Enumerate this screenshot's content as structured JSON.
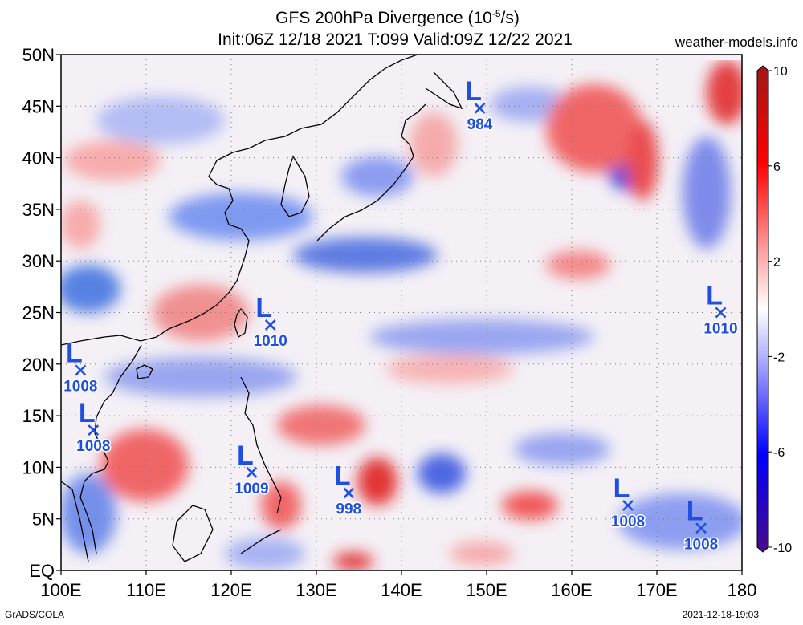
{
  "header": {
    "title_line1": "GFS 200hPa Divergence (10",
    "title_exp": "-5",
    "title_unit_end": "/s)",
    "title_line2": "Init:06Z 12/18 2021 T:099 Valid:09Z 12/22 2021",
    "site": "weather-models.info"
  },
  "footer": {
    "credit": "GrADS/COLA",
    "timestamp": "2021-12-18-19:03"
  },
  "axes": {
    "lat_labels": [
      "50N",
      "45N",
      "40N",
      "35N",
      "30N",
      "25N",
      "20N",
      "15N",
      "10N",
      "5N",
      "EQ"
    ],
    "lat_values": [
      50,
      45,
      40,
      35,
      30,
      25,
      20,
      15,
      10,
      5,
      0
    ],
    "lon_labels": [
      "100E",
      "110E",
      "120E",
      "130E",
      "140E",
      "150E",
      "160E",
      "170E",
      "180"
    ],
    "lon_values": [
      100,
      110,
      120,
      130,
      140,
      150,
      160,
      170,
      180
    ],
    "lon_range": [
      100,
      180
    ],
    "lat_range": [
      0,
      50
    ],
    "grid": "dotted"
  },
  "colorbar": {
    "labels": [
      "10",
      "6",
      "2",
      "-2",
      "-6",
      "-10"
    ],
    "values": [
      10,
      6,
      2,
      -2,
      -6,
      -10
    ],
    "colors": [
      "#a01818",
      "#ff0000",
      "#ff9a9a",
      "#ffffff",
      "#9a9aff",
      "#0000ff",
      "#4a0a8a"
    ]
  },
  "lows": [
    {
      "pressure": "984",
      "lon": 149.2,
      "lat": 44.8
    },
    {
      "pressure": "1010",
      "lon": 124.6,
      "lat": 23.8
    },
    {
      "pressure": "1008",
      "lon": 102.3,
      "lat": 19.4
    },
    {
      "pressure": "1008",
      "lon": 103.8,
      "lat": 13.6
    },
    {
      "pressure": "1009",
      "lon": 122.4,
      "lat": 9.5
    },
    {
      "pressure": "998",
      "lon": 133.8,
      "lat": 7.5
    },
    {
      "pressure": "1008",
      "lon": 166.6,
      "lat": 6.3
    },
    {
      "pressure": "1008",
      "lon": 175.2,
      "lat": 4.1
    },
    {
      "pressure": "1010",
      "lon": 177.5,
      "lat": 25.0
    }
  ]
}
